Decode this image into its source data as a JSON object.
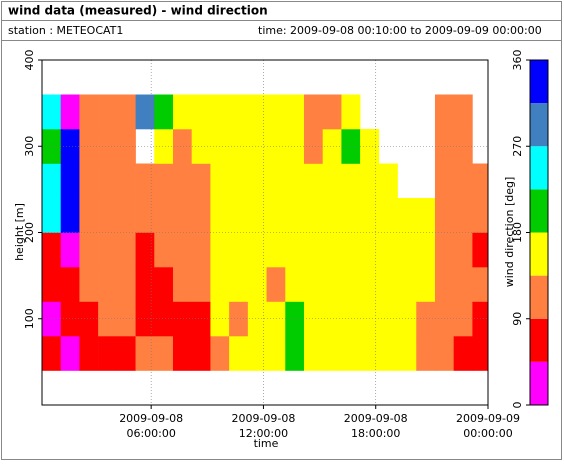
{
  "chart_data": {
    "type": "heatmap",
    "title": "wind data (measured) - wind direction",
    "station": "station : METEOCAT1",
    "time_range": "time: 2009-09-08 00:10:00 to 2009-09-09 00:00:00",
    "xlabel": "time",
    "ylabel": "height [m]",
    "colorbar_label": "wind direction [deg]",
    "xlim": [
      "2009-09-08 00:10:00",
      "2009-09-09 00:00:00"
    ],
    "xticks": [
      "2009-09-08 06:00:00",
      "2009-09-08 12:00:00",
      "2009-09-08 18:00:00",
      "2009-09-09 00:00:00"
    ],
    "ylim": [
      0,
      400
    ],
    "yticks": [
      100,
      200,
      300,
      400
    ],
    "grid": true,
    "x": [
      "2009-09-08 00:10:00",
      "2009-09-08 01:10:00",
      "2009-09-08 02:10:00",
      "2009-09-08 03:10:00",
      "2009-09-08 04:10:00",
      "2009-09-08 05:10:00",
      "2009-09-08 06:10:00",
      "2009-09-08 07:10:00",
      "2009-09-08 08:10:00",
      "2009-09-08 09:10:00",
      "2009-09-08 10:10:00",
      "2009-09-08 11:10:00",
      "2009-09-08 12:10:00",
      "2009-09-08 13:10:00",
      "2009-09-08 14:10:00",
      "2009-09-08 15:10:00",
      "2009-09-08 16:10:00",
      "2009-09-08 17:10:00",
      "2009-09-08 18:10:00",
      "2009-09-08 19:10:00",
      "2009-09-08 20:10:00",
      "2009-09-08 21:10:00",
      "2009-09-08 22:10:00",
      "2009-09-08 23:10:00"
    ],
    "y_edges": [
      40,
      80,
      120,
      160,
      200,
      240,
      280,
      320,
      360
    ],
    "values": [
      [
        67,
        22,
        67,
        67,
        247,
        247,
        202,
        247
      ],
      [
        22,
        67,
        67,
        22,
        337,
        337,
        337,
        22
      ],
      [
        67,
        67,
        112,
        112,
        112,
        112,
        112,
        112
      ],
      [
        67,
        112,
        112,
        112,
        112,
        112,
        112,
        112
      ],
      [
        67,
        112,
        112,
        112,
        112,
        112,
        112,
        112
      ],
      [
        112,
        67,
        67,
        67,
        112,
        112,
        null,
        292
      ],
      [
        112,
        67,
        67,
        112,
        112,
        112,
        157,
        202
      ],
      [
        67,
        67,
        112,
        112,
        112,
        112,
        112,
        157
      ],
      [
        67,
        67,
        112,
        112,
        112,
        112,
        157,
        157
      ],
      [
        112,
        157,
        157,
        157,
        157,
        157,
        157,
        157
      ],
      [
        157,
        112,
        157,
        157,
        157,
        157,
        157,
        157
      ],
      [
        157,
        157,
        157,
        157,
        157,
        157,
        157,
        157
      ],
      [
        157,
        157,
        112,
        157,
        157,
        157,
        157,
        157
      ],
      [
        202,
        202,
        157,
        157,
        157,
        157,
        157,
        157
      ],
      [
        157,
        157,
        157,
        157,
        157,
        157,
        112,
        112
      ],
      [
        157,
        157,
        157,
        157,
        157,
        157,
        157,
        112
      ],
      [
        157,
        157,
        157,
        157,
        157,
        157,
        202,
        157
      ],
      [
        157,
        157,
        157,
        157,
        157,
        157,
        157,
        null
      ],
      [
        157,
        157,
        157,
        157,
        157,
        157,
        null,
        null
      ],
      [
        157,
        157,
        157,
        157,
        157,
        null,
        null,
        null
      ],
      [
        112,
        112,
        157,
        157,
        157,
        null,
        null,
        null
      ],
      [
        112,
        112,
        112,
        112,
        112,
        112,
        112,
        112
      ],
      [
        67,
        112,
        112,
        112,
        112,
        112,
        112,
        112
      ],
      [
        67,
        67,
        112,
        67,
        112,
        112,
        null,
        null
      ]
    ],
    "colorbar": {
      "bounds": [
        0,
        45,
        90,
        135,
        180,
        225,
        270,
        315,
        360
      ],
      "colors": [
        "#ff00ff",
        "#ff0000",
        "#ff8040",
        "#ffff00",
        "#00cc00",
        "#00ffff",
        "#4080c0",
        "#0000ff"
      ],
      "ticks": [
        0,
        90,
        180,
        270,
        360
      ]
    }
  }
}
